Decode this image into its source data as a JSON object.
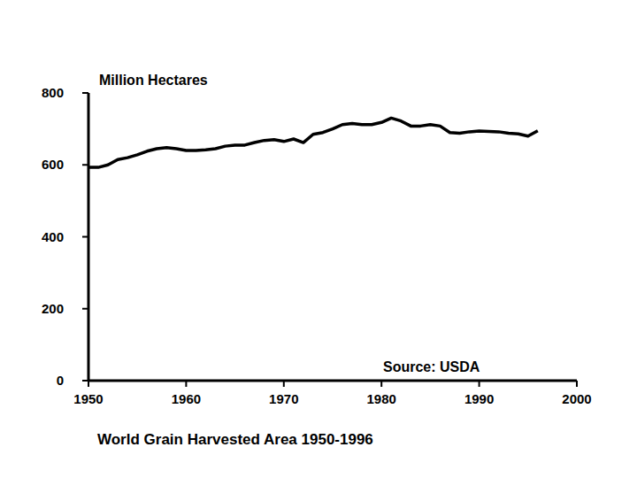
{
  "chart_data": {
    "type": "line",
    "title": "World Grain Harvested Area 1950-1996",
    "y_label": "Million Hectares",
    "annotations": [
      "Source: USDA"
    ],
    "x": [
      1950,
      1951,
      1952,
      1953,
      1954,
      1955,
      1956,
      1957,
      1958,
      1959,
      1960,
      1961,
      1962,
      1963,
      1964,
      1965,
      1966,
      1967,
      1968,
      1969,
      1970,
      1971,
      1972,
      1973,
      1974,
      1975,
      1976,
      1977,
      1978,
      1979,
      1980,
      1981,
      1982,
      1983,
      1984,
      1985,
      1986,
      1987,
      1988,
      1989,
      1990,
      1991,
      1992,
      1993,
      1994,
      1995,
      1996
    ],
    "values": [
      593,
      593,
      600,
      615,
      620,
      628,
      638,
      645,
      648,
      645,
      640,
      640,
      642,
      645,
      652,
      655,
      655,
      662,
      668,
      670,
      665,
      672,
      662,
      685,
      690,
      700,
      712,
      715,
      712,
      712,
      718,
      730,
      722,
      708,
      708,
      712,
      708,
      690,
      688,
      692,
      694,
      693,
      692,
      688,
      686,
      680,
      695
    ],
    "color": "#000000",
    "xlim": [
      1950,
      2000
    ],
    "xticks": [
      1950,
      1960,
      1970,
      1980,
      1990,
      2000
    ],
    "ylim": [
      0,
      800
    ],
    "yticks": [
      0,
      200,
      400,
      600,
      800
    ],
    "grid": false
  }
}
